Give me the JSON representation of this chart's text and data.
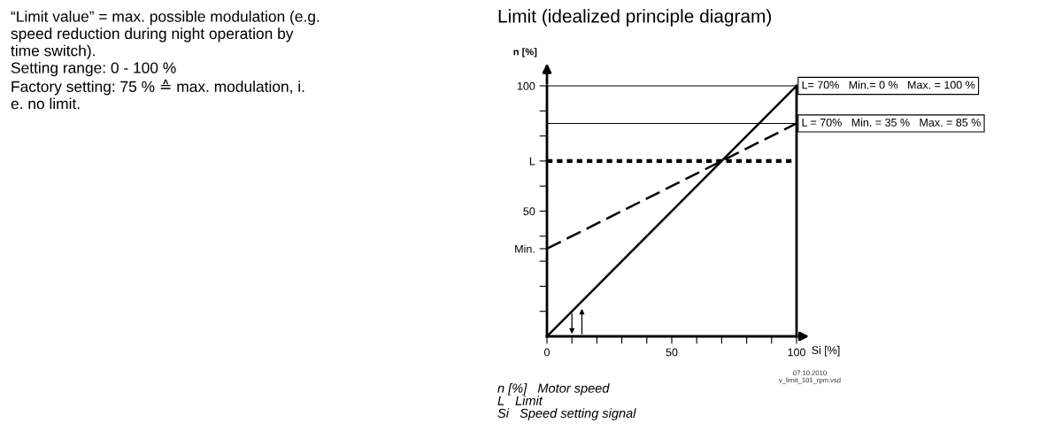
{
  "chart_data": {
    "type": "line",
    "title": "Limit (idealized principle diagram)",
    "xlabel": "Si [%]",
    "ylabel": "n [%]",
    "x": [
      0,
      70,
      100
    ],
    "series": [
      {
        "color": "#000000",
        "values": [
          0,
          70,
          100
        ],
        "line_style": "solid"
      },
      {
        "color": "#000000",
        "values": [
          35,
          70,
          85
        ],
        "line_style": "dashed"
      }
    ],
    "xlim": [
      0,
      100
    ],
    "ylim": [
      0,
      100
    ],
    "xticks": [
      0,
      {
        "value": 10,
        "label": null
      },
      {
        "value": 20,
        "label": null
      },
      {
        "value": 30,
        "label": null
      },
      {
        "value": 40,
        "label": null
      },
      50,
      {
        "value": 60,
        "label": null
      },
      {
        "value": 70,
        "label": null
      },
      {
        "value": 80,
        "label": null
      },
      {
        "value": 90,
        "label": null
      },
      100
    ],
    "yticks": [
      {
        "value": 10,
        "label": null
      },
      {
        "value": 20,
        "label": null
      },
      {
        "value": 30,
        "label": null
      },
      {
        "value": 35,
        "label": "Min."
      },
      {
        "value": 40,
        "label": null
      },
      50,
      {
        "value": 60,
        "label": null
      },
      {
        "value": 70,
        "label": "L"
      },
      {
        "value": 80,
        "label": null
      },
      {
        "value": 90,
        "label": null
      },
      100
    ],
    "ref_lines": [
      {
        "axis": "y",
        "value": 70,
        "line_style": "dotted",
        "color": "#000000"
      },
      {
        "axis": "y",
        "value": 100,
        "line_style": "solid",
        "color": "#000000",
        "label": "L= 70%   Min.= 0 %   Max. = 100 %"
      },
      {
        "axis": "y",
        "value": 85,
        "line_style": "solid",
        "color": "#000000",
        "label": "L = 70%   Min. = 35 %   Max. = 85 %"
      },
      {
        "axis": "x",
        "value": 100,
        "line_style": "solid",
        "color": "#000000"
      }
    ],
    "grid": false,
    "legend": false,
    "marker": "none",
    "annotations": [
      "“Limit value” = max. possible modulation (e.g.\nspeed reduction during night operation by\ntime switch).\nSetting range: 0 - 100 %\nFactory setting: 75 % ≙ max. modulation, i.\ne. no limit.",
      "07.10.2010\nv_limit_101_rpm.vsd",
      "n [%]   Motor speed\nL   Limit\nSi   Speed setting signal"
    ]
  }
}
